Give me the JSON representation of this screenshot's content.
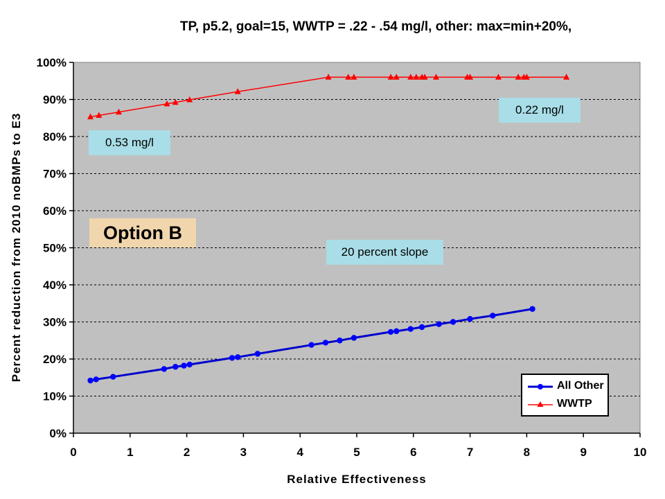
{
  "chart_data": {
    "type": "line",
    "title": "TP, p5.2, goal=15, WWTP = .22 - .54 mg/l, other: max=min+20%,",
    "xlabel": "Relative Effectiveness",
    "ylabel": "Percent reduction from 2010 noBMPs to E3",
    "xlim": [
      0,
      10
    ],
    "ylim": [
      0,
      100
    ],
    "x_ticks": [
      "0",
      "1",
      "2",
      "3",
      "4",
      "5",
      "6",
      "7",
      "8",
      "9",
      "10"
    ],
    "y_ticks": [
      "0%",
      "10%",
      "20%",
      "30%",
      "40%",
      "50%",
      "60%",
      "70%",
      "80%",
      "90%",
      "100%"
    ],
    "grid": "horizontal dashed",
    "legend_position": "bottom-right",
    "series": [
      {
        "name": "All Other",
        "color": "#0000cc",
        "marker": "circle",
        "points": [
          [
            0.3,
            14.2
          ],
          [
            0.4,
            14.5
          ],
          [
            0.7,
            15.2
          ],
          [
            1.6,
            17.3
          ],
          [
            1.8,
            17.9
          ],
          [
            1.95,
            18.2
          ],
          [
            2.05,
            18.5
          ],
          [
            2.8,
            20.3
          ],
          [
            2.9,
            20.5
          ],
          [
            3.25,
            21.4
          ],
          [
            4.2,
            23.8
          ],
          [
            4.45,
            24.4
          ],
          [
            4.7,
            25.0
          ],
          [
            4.95,
            25.7
          ],
          [
            5.6,
            27.3
          ],
          [
            5.7,
            27.5
          ],
          [
            5.95,
            28.1
          ],
          [
            6.15,
            28.6
          ],
          [
            6.45,
            29.4
          ],
          [
            6.7,
            30.0
          ],
          [
            7.0,
            30.8
          ],
          [
            7.4,
            31.7
          ],
          [
            8.1,
            33.5
          ]
        ]
      },
      {
        "name": "WWTP",
        "color": "#ff0000",
        "marker": "triangle",
        "points": [
          [
            0.3,
            85.3
          ],
          [
            0.45,
            85.7
          ],
          [
            0.8,
            86.6
          ],
          [
            1.65,
            88.8
          ],
          [
            1.8,
            89.2
          ],
          [
            2.05,
            89.9
          ],
          [
            2.9,
            92.1
          ],
          [
            4.5,
            96.0
          ],
          [
            4.85,
            96.0
          ],
          [
            4.95,
            96.0
          ],
          [
            5.6,
            96.0
          ],
          [
            5.7,
            96.0
          ],
          [
            5.95,
            96.0
          ],
          [
            6.05,
            96.0
          ],
          [
            6.15,
            96.0
          ],
          [
            6.2,
            96.0
          ],
          [
            6.4,
            96.0
          ],
          [
            6.95,
            96.0
          ],
          [
            7.0,
            96.0
          ],
          [
            7.5,
            96.0
          ],
          [
            7.85,
            96.0
          ],
          [
            7.95,
            96.0
          ],
          [
            8.0,
            96.0
          ],
          [
            8.7,
            96.0
          ]
        ]
      }
    ],
    "annotations": [
      "0.53 mg/l",
      "0.22 mg/l",
      "20 percent slope",
      "Option B"
    ]
  },
  "callouts": {
    "left_wwtp": "0.53 mg/l",
    "right_wwtp": "0.22 mg/l",
    "slope": "20 percent slope",
    "option": "Option B"
  }
}
